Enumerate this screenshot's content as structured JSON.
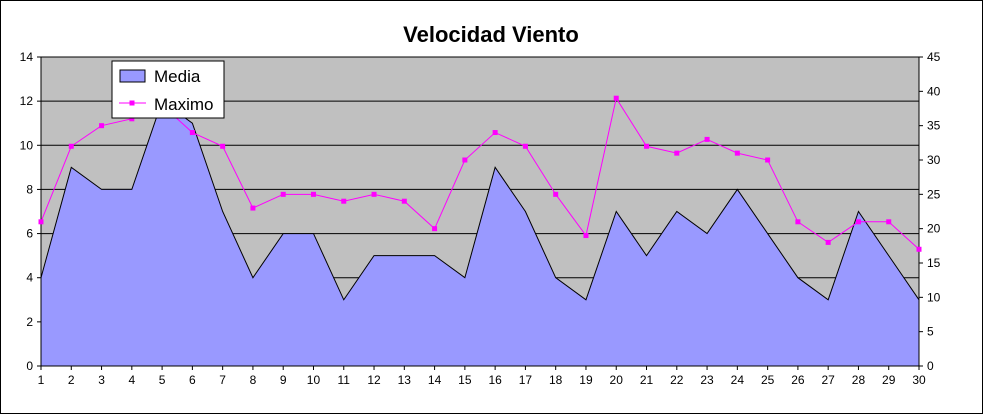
{
  "chart_data": {
    "type": "area",
    "title": "Velocidad Viento",
    "xlabel": "",
    "ylabel": "",
    "x": [
      1,
      2,
      3,
      4,
      5,
      6,
      7,
      8,
      9,
      10,
      11,
      12,
      13,
      14,
      15,
      16,
      17,
      18,
      19,
      20,
      21,
      22,
      23,
      24,
      25,
      26,
      27,
      28,
      29,
      30
    ],
    "series": [
      {
        "name": "Media",
        "type": "area",
        "axis": "left",
        "color": "#9999ff",
        "values": [
          4,
          9,
          8,
          8,
          12,
          11,
          7,
          4,
          6,
          6,
          3,
          5,
          5,
          5,
          4,
          9,
          7,
          4,
          3,
          7,
          5,
          7,
          6,
          8,
          6,
          4,
          3,
          7,
          5,
          3
        ]
      },
      {
        "name": "Maximo",
        "type": "line",
        "axis": "right",
        "color": "#ff00ff",
        "values": [
          21,
          32,
          35,
          36,
          38,
          34,
          32,
          23,
          25,
          25,
          24,
          25,
          24,
          20,
          30,
          34,
          32,
          25,
          19,
          39,
          32,
          31,
          33,
          31,
          30,
          21,
          18,
          21,
          21,
          17
        ]
      }
    ],
    "y_left": {
      "lim": [
        0,
        14
      ],
      "ticks": [
        0,
        2,
        4,
        6,
        8,
        10,
        12,
        14
      ]
    },
    "y_right": {
      "lim": [
        0,
        45
      ],
      "ticks": [
        0,
        5,
        10,
        15,
        20,
        25,
        30,
        35,
        40,
        45
      ]
    },
    "plot_background": "#c0c0c0",
    "gridlines": true,
    "legend_position": "top-left"
  }
}
